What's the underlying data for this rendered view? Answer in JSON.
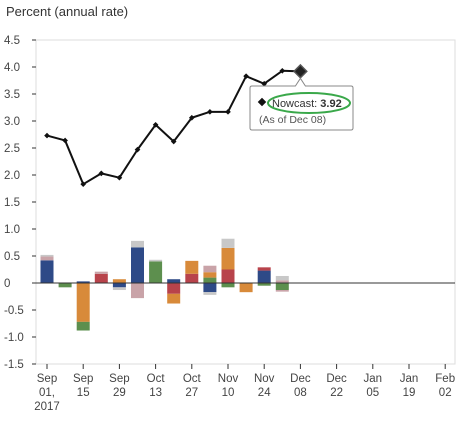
{
  "chart_data": {
    "type": "line",
    "ylabel": "Percent (annual rate)",
    "ylim": [
      -1.5,
      4.5
    ],
    "yticks": [
      "4.5",
      "4.0",
      "3.5",
      "3.0",
      "2.5",
      "2.0",
      "1.5",
      "1.0",
      "0.5",
      "0",
      "-0.5",
      "-1.0",
      "-1.5"
    ],
    "xtick_lines": [
      [
        "Sep",
        "01,",
        "2017"
      ],
      [
        "Sep",
        "15"
      ],
      [
        "Sep",
        "29"
      ],
      [
        "Oct",
        "13"
      ],
      [
        "Oct",
        "27"
      ],
      [
        "Nov",
        "10"
      ],
      [
        "Nov",
        "24"
      ],
      [
        "Dec",
        "08"
      ],
      [
        "Dec",
        "22"
      ],
      [
        "Jan",
        "05"
      ],
      [
        "Jan",
        "19"
      ],
      [
        "Feb",
        "02"
      ]
    ],
    "series": [
      {
        "values": [
          2.73,
          2.64,
          1.83,
          2.03,
          1.95,
          2.47,
          2.93,
          2.62,
          3.06,
          3.17,
          3.17,
          3.83,
          3.69,
          3.93,
          3.92
        ]
      }
    ],
    "nowcast": {
      "label": "Nowcast:",
      "value": "3.92",
      "as_of": "(As of Dec 08)"
    },
    "bars": [
      [
        {
          "v": 0.42,
          "c": "#2e4a87"
        },
        {
          "v": 0.07,
          "c": "#c9a3a8"
        },
        {
          "v": 0.03,
          "c": "#c8c8c8"
        }
      ],
      [
        {
          "v": -0.08,
          "c": "#5d8f4e"
        }
      ],
      [
        {
          "v": 0.03,
          "c": "#2e4a87"
        },
        {
          "v": -0.72,
          "c": "#d88a3a"
        },
        {
          "v": -0.16,
          "c": "#5d8f4e"
        }
      ],
      [
        {
          "v": 0.17,
          "c": "#b8434b"
        },
        {
          "v": 0.04,
          "c": "#c9a3a8"
        }
      ],
      [
        {
          "v": -0.08,
          "c": "#2e4a87"
        },
        {
          "v": 0.07,
          "c": "#d88a3a"
        },
        {
          "v": -0.05,
          "c": "#c8c8c8"
        }
      ],
      [
        {
          "v": 0.66,
          "c": "#2e4a87"
        },
        {
          "v": -0.28,
          "c": "#c9a3a8"
        },
        {
          "v": 0.12,
          "c": "#c8c8c8"
        }
      ],
      [
        {
          "v": 0.4,
          "c": "#5d8f4e"
        },
        {
          "v": 0.03,
          "c": "#c8c8c8"
        }
      ],
      [
        {
          "v": 0.07,
          "c": "#2e4a87"
        },
        {
          "v": -0.2,
          "c": "#b8434b"
        },
        {
          "v": -0.18,
          "c": "#d88a3a"
        }
      ],
      [
        {
          "v": 0.17,
          "c": "#b8434b"
        },
        {
          "v": 0.24,
          "c": "#d88a3a"
        }
      ],
      [
        {
          "v": -0.17,
          "c": "#2e4a87"
        },
        {
          "v": 0.1,
          "c": "#5d8f4e"
        },
        {
          "v": 0.1,
          "c": "#d88a3a"
        },
        {
          "v": 0.12,
          "c": "#c9a3a8"
        },
        {
          "v": -0.05,
          "c": "#c8c8c8"
        }
      ],
      [
        {
          "v": 0.25,
          "c": "#b8434b"
        },
        {
          "v": 0.4,
          "c": "#d88a3a"
        },
        {
          "v": -0.08,
          "c": "#5d8f4e"
        },
        {
          "v": 0.17,
          "c": "#c8c8c8"
        }
      ],
      [
        {
          "v": -0.17,
          "c": "#d88a3a"
        }
      ],
      [
        {
          "v": 0.23,
          "c": "#2e4a87"
        },
        {
          "v": 0.06,
          "c": "#b8434b"
        },
        {
          "v": -0.05,
          "c": "#5d8f4e"
        }
      ],
      [
        {
          "v": 0.05,
          "c": "#c9a3a8"
        },
        {
          "v": 0.08,
          "c": "#c8c8c8"
        },
        {
          "v": -0.13,
          "c": "#5d8f4e"
        },
        {
          "v": -0.03,
          "c": "#c9a3a8"
        }
      ]
    ],
    "colors": {
      "line": "#111111",
      "axis": "#333333",
      "grid": "#dddddd",
      "callout_border": "#888888",
      "callout_ellipse": "#3aa84a"
    },
    "grid": true
  }
}
